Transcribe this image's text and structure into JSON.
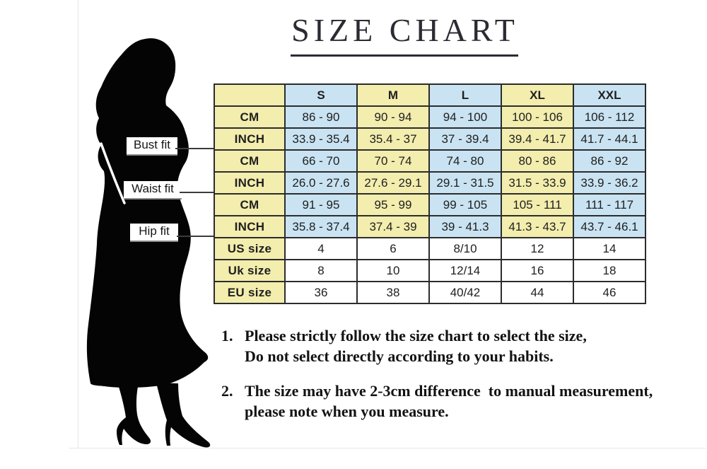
{
  "title": {
    "text": "SIZE CHART"
  },
  "figure": {
    "labels": [
      {
        "text": "Bust fit"
      },
      {
        "text": "Waist fit"
      },
      {
        "text": "Hip fit"
      }
    ]
  },
  "size_chart": {
    "columns": [
      "S",
      "M",
      "L",
      "XL",
      "XXL"
    ],
    "rows": [
      {
        "section": "Bust fit",
        "unit": "CM",
        "values": [
          "86 - 90",
          "90 - 94",
          "94 - 100",
          "100 - 106",
          "106 - 112"
        ]
      },
      {
        "section": "Bust fit",
        "unit": "INCH",
        "values": [
          "33.9 - 35.4",
          "35.4 - 37",
          "37 - 39.4",
          "39.4 - 41.7",
          "41.7 - 44.1"
        ]
      },
      {
        "section": "Waist fit",
        "unit": "CM",
        "values": [
          "66 - 70",
          "70 - 74",
          "74 - 80",
          "80 - 86",
          "86 - 92"
        ]
      },
      {
        "section": "Waist fit",
        "unit": "INCH",
        "values": [
          "26.0 - 27.6",
          "27.6 - 29.1",
          "29.1 - 31.5",
          "31.5 - 33.9",
          "33.9 - 36.2"
        ]
      },
      {
        "section": "Hip fit",
        "unit": "CM",
        "values": [
          "91 - 95",
          "95 - 99",
          "99 - 105",
          "105 - 111",
          "111 - 117"
        ]
      },
      {
        "section": "Hip fit",
        "unit": "INCH",
        "values": [
          "35.8 - 37.4",
          "37.4 - 39",
          "39 - 41.3",
          "41.3 - 43.7",
          "43.7 - 46.1"
        ]
      },
      {
        "unit": "US size",
        "plain": true,
        "values": [
          "4",
          "6",
          "8/10",
          "12",
          "14"
        ]
      },
      {
        "unit": "Uk size",
        "plain": true,
        "values": [
          "8",
          "10",
          "12/14",
          "16",
          "18"
        ]
      },
      {
        "unit": "EU size",
        "plain": true,
        "values": [
          "36",
          "38",
          "40/42",
          "44",
          "46"
        ]
      }
    ],
    "colors": {
      "yellow": "#f3edae",
      "blue": "#c9e3f2",
      "border": "#2c2c2c"
    },
    "column_color_pattern": [
      "blue",
      "yellow",
      "blue",
      "yellow",
      "blue"
    ]
  },
  "notes": [
    {
      "number": "1.",
      "lines": [
        "Please strictly follow the size chart to select the size,",
        "Do not select directly according to your habits."
      ]
    },
    {
      "number": "2.",
      "lines": [
        "The size may have 2-3cm difference  to manual measurement,",
        "please note when you measure."
      ]
    }
  ]
}
